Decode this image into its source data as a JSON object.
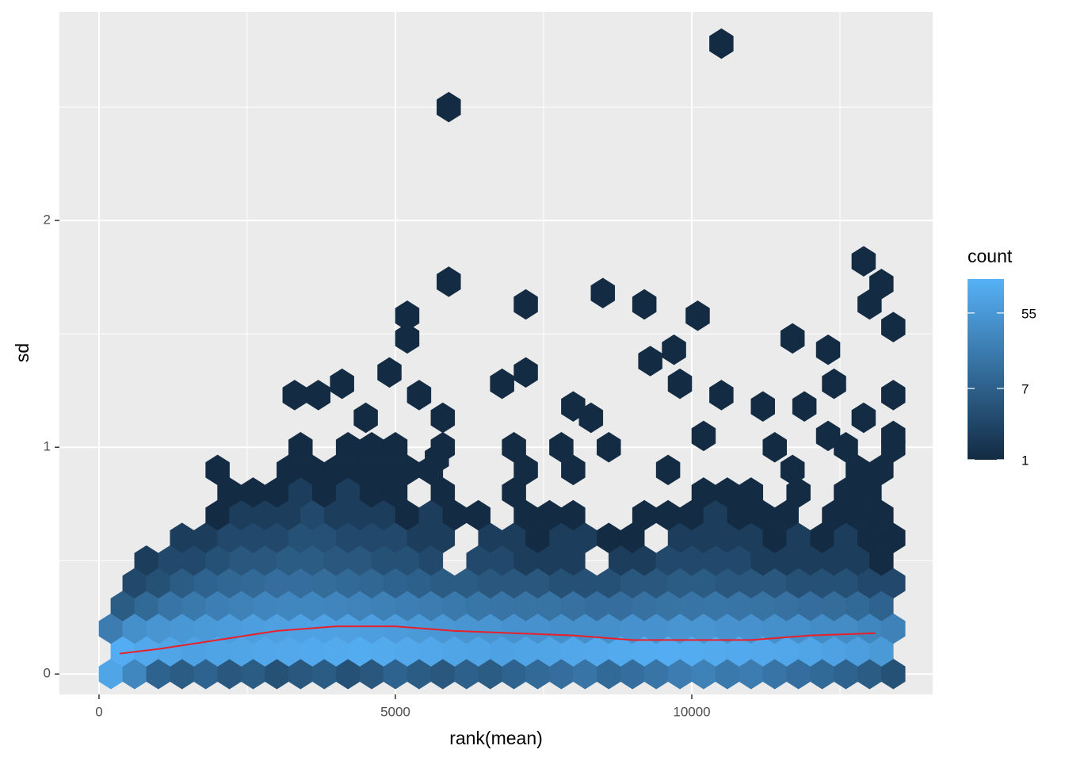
{
  "chart_data": {
    "type": "hexbin",
    "x_label": "rank(mean)",
    "y_label": "sd",
    "xlim": [
      -668,
      14064
    ],
    "ylim": [
      -0.09,
      2.92
    ],
    "xticks": [
      0,
      5000,
      10000
    ],
    "yticks": [
      0,
      1,
      2
    ],
    "x_minor_grid": [
      2500,
      7500,
      12500
    ],
    "y_minor_grid": [
      0.5,
      1.5,
      2.5
    ],
    "grid": true,
    "legend": {
      "title": "count",
      "ticks": [
        1,
        7,
        55
      ],
      "lim": [
        1,
        139
      ],
      "log": true,
      "colors": [
        "#132B43",
        "#56B1F7"
      ]
    },
    "hexes": [
      {
        "y": 0,
        "x": [
          200,
          600,
          1000,
          1400,
          1800,
          2200,
          2600,
          3000,
          3400,
          3800,
          4200,
          4600,
          5000,
          5400,
          5800,
          6200,
          6600,
          7000,
          7400,
          7800,
          8200,
          8600,
          9000,
          9400,
          9800,
          10200,
          10600,
          11000,
          11400,
          11800,
          12200,
          12600,
          13000,
          13400
        ],
        "count": [
          90,
          30,
          8,
          6,
          8,
          5,
          6,
          4,
          5,
          6,
          4,
          5,
          8,
          6,
          5,
          7,
          6,
          8,
          10,
          12,
          15,
          10,
          12,
          15,
          20,
          25,
          18,
          20,
          15,
          12,
          10,
          8,
          6,
          4
        ]
      },
      {
        "y": 0.1,
        "x": [
          400,
          800,
          1200,
          1600,
          2000,
          2400,
          2800,
          3200,
          3600,
          4000,
          4400,
          4800,
          5200,
          5600,
          6000,
          6400,
          6800,
          7200,
          7600,
          8000,
          8400,
          8800,
          9200,
          9600,
          10000,
          10400,
          10800,
          11200,
          11600,
          12000,
          12400,
          12800,
          13200
        ],
        "count": [
          120,
          100,
          90,
          80,
          85,
          90,
          95,
          100,
          105,
          110,
          115,
          110,
          100,
          95,
          90,
          85,
          80,
          85,
          90,
          95,
          100,
          110,
          115,
          120,
          115,
          110,
          105,
          100,
          95,
          90,
          80,
          70,
          60
        ]
      },
      {
        "y": 0.2,
        "x": [
          200,
          600,
          1000,
          1400,
          1800,
          2200,
          2600,
          3000,
          3400,
          3800,
          4200,
          4600,
          5000,
          5400,
          5800,
          6200,
          6600,
          7000,
          7400,
          7800,
          8200,
          8600,
          9000,
          9400,
          9800,
          10200,
          10600,
          11000,
          11400,
          11800,
          12200,
          12600,
          13000,
          13400
        ],
        "count": [
          20,
          40,
          50,
          55,
          60,
          65,
          70,
          75,
          80,
          80,
          75,
          70,
          65,
          60,
          55,
          50,
          50,
          45,
          45,
          40,
          40,
          40,
          45,
          45,
          50,
          50,
          45,
          45,
          40,
          40,
          35,
          35,
          30,
          25
        ]
      },
      {
        "y": 0.3,
        "x": [
          400,
          800,
          1200,
          1600,
          2000,
          2400,
          2800,
          3200,
          3600,
          4000,
          4400,
          4800,
          5200,
          5600,
          6000,
          6400,
          6800,
          7200,
          7600,
          8000,
          8400,
          8800,
          9200,
          9600,
          10000,
          10400,
          10800,
          11200,
          11600,
          12000,
          12400,
          12800,
          13200
        ],
        "count": [
          6,
          10,
          15,
          18,
          22,
          25,
          28,
          30,
          30,
          28,
          26,
          24,
          22,
          20,
          18,
          16,
          15,
          14,
          14,
          13,
          12,
          12,
          13,
          14,
          15,
          16,
          15,
          14,
          13,
          12,
          11,
          10,
          8
        ]
      },
      {
        "y": 0.4,
        "x": [
          200,
          600,
          1000,
          1400,
          1800,
          2200,
          2600,
          3000,
          3400,
          3800,
          4200,
          4600,
          5000,
          5400,
          5800,
          6200,
          6600,
          7000,
          7400,
          7800,
          8200,
          8600,
          9000,
          9400,
          9800,
          10200,
          10600,
          11000,
          11400,
          11800,
          12200,
          12600,
          13000,
          13400
        ],
        "count": [
          null,
          3,
          4,
          6,
          8,
          9,
          10,
          12,
          12,
          11,
          10,
          9,
          8,
          7,
          6,
          6,
          5,
          5,
          5,
          4,
          4,
          4,
          5,
          5,
          6,
          6,
          5,
          5,
          5,
          4,
          4,
          4,
          3,
          3
        ]
      },
      {
        "y": 0.5,
        "x": [
          400,
          800,
          1200,
          1600,
          2000,
          2400,
          2800,
          3200,
          3600,
          4000,
          4400,
          4800,
          5200,
          5600,
          6000,
          6400,
          6800,
          7200,
          7600,
          8000,
          8400,
          8800,
          9200,
          9600,
          10000,
          10400,
          10800,
          11200,
          11600,
          12000,
          12400,
          12800,
          13200
        ],
        "count": [
          null,
          2,
          3,
          3,
          4,
          5,
          5,
          6,
          6,
          5,
          5,
          4,
          4,
          3,
          null,
          3,
          3,
          2,
          2,
          2,
          null,
          2,
          2,
          3,
          3,
          3,
          3,
          2,
          2,
          2,
          2,
          2,
          1
        ]
      },
      {
        "y": 0.6,
        "x": [
          200,
          600,
          1000,
          1400,
          1800,
          2200,
          2600,
          3000,
          3400,
          3800,
          4200,
          4600,
          5000,
          5400,
          5800,
          6200,
          6600,
          7000,
          7400,
          7800,
          8200,
          8600,
          9000,
          9400,
          9800,
          10200,
          10600,
          11000,
          11400,
          11800,
          12200,
          12600,
          13000,
          13400
        ],
        "count": [
          null,
          null,
          null,
          2,
          2,
          3,
          3,
          3,
          4,
          4,
          3,
          3,
          3,
          2,
          2,
          null,
          2,
          2,
          1,
          2,
          2,
          1,
          1,
          null,
          2,
          2,
          2,
          2,
          1,
          2,
          1,
          2,
          1,
          1
        ]
      },
      {
        "y": 0.7,
        "x": [
          400,
          800,
          1200,
          1600,
          2000,
          2400,
          2800,
          3200,
          3600,
          4000,
          4400,
          4800,
          5200,
          5600,
          6000,
          6400,
          6800,
          7200,
          7600,
          8000,
          8400,
          8800,
          9200,
          9600,
          10000,
          10400,
          10800,
          11200,
          11600,
          12000,
          12400,
          12800,
          13200
        ],
        "count": [
          null,
          null,
          null,
          null,
          1,
          2,
          2,
          2,
          3,
          2,
          2,
          2,
          1,
          2,
          1,
          1,
          null,
          1,
          1,
          1,
          null,
          null,
          1,
          1,
          1,
          2,
          1,
          1,
          1,
          null,
          1,
          1,
          1
        ]
      },
      {
        "y": 0.8,
        "x": [
          200,
          600,
          1000,
          1400,
          1800,
          2200,
          2600,
          3000,
          3400,
          3800,
          4200,
          4600,
          5000,
          5400,
          5800,
          6200,
          6600,
          7000,
          7400,
          7800,
          8200,
          8600,
          9000,
          9400,
          9800,
          10200,
          10600,
          11000,
          11400,
          11800,
          12200,
          12600,
          13000,
          13400
        ],
        "count": [
          null,
          null,
          null,
          null,
          null,
          1,
          1,
          1,
          2,
          1,
          2,
          1,
          1,
          null,
          1,
          null,
          null,
          1,
          null,
          null,
          null,
          null,
          null,
          null,
          null,
          1,
          1,
          1,
          null,
          1,
          null,
          1,
          1,
          null
        ]
      },
      {
        "y": 0.9,
        "x": [
          400,
          800,
          1200,
          1600,
          2000,
          2400,
          2800,
          3200,
          3600,
          4000,
          4400,
          4800,
          5200,
          5600,
          6000,
          6400,
          6800,
          7200,
          7600,
          8000,
          8400,
          8800,
          9200,
          9600,
          10000,
          10400,
          10800,
          11200,
          11600,
          12000,
          12400,
          12800,
          13200
        ],
        "count": [
          null,
          null,
          null,
          null,
          1,
          null,
          null,
          1,
          1,
          1,
          1,
          1,
          1,
          1,
          null,
          null,
          null,
          1,
          null,
          1,
          null,
          null,
          null,
          1,
          null,
          null,
          null,
          null,
          null,
          null,
          null,
          1,
          1
        ]
      },
      {
        "y": 1.0,
        "x": [
          200,
          600,
          1000,
          1400,
          1800,
          2200,
          2600,
          3000,
          3400,
          3800,
          4200,
          4600,
          5000,
          5400,
          5800,
          6200,
          6600,
          7000,
          7400,
          7800,
          8200,
          8600,
          9000,
          9400,
          9800,
          10200,
          10600,
          11000,
          11400,
          11800,
          12200,
          12600,
          13000,
          13400
        ],
        "count": [
          null,
          null,
          null,
          null,
          null,
          null,
          null,
          null,
          1,
          null,
          1,
          1,
          1,
          null,
          1,
          null,
          null,
          1,
          null,
          1,
          null,
          1,
          null,
          null,
          null,
          null,
          null,
          null,
          1,
          null,
          null,
          1,
          null,
          1
        ]
      }
    ],
    "sparse_hexes": {
      "x": [
        5900,
        10500,
        5900,
        7200,
        8500,
        9200,
        10100,
        5200,
        5200,
        12900,
        13200,
        13000,
        13400,
        11700,
        12300,
        9700,
        9300,
        4900,
        7200,
        3300,
        3700,
        5400,
        10500,
        13400,
        4100,
        6800,
        9800,
        12400,
        8000,
        11200,
        11900,
        4500,
        5800,
        8300,
        12900,
        10200,
        12300,
        13400,
        5700,
        11700
      ],
      "y": [
        2.5,
        2.78,
        1.73,
        1.63,
        1.68,
        1.63,
        1.58,
        1.58,
        1.48,
        1.82,
        1.72,
        1.63,
        1.53,
        1.48,
        1.43,
        1.43,
        1.38,
        1.33,
        1.33,
        1.23,
        1.23,
        1.23,
        1.23,
        1.23,
        1.28,
        1.28,
        1.28,
        1.28,
        1.18,
        1.18,
        1.18,
        1.13,
        1.13,
        1.13,
        1.13,
        1.05,
        1.05,
        1.05,
        0.95,
        0.9
      ],
      "count": [
        1,
        1,
        1,
        1,
        1,
        1,
        1,
        1,
        1,
        1,
        1,
        1,
        1,
        1,
        1,
        1,
        1,
        1,
        1,
        1,
        1,
        1,
        1,
        1,
        1,
        1,
        1,
        1,
        1,
        1,
        1,
        1,
        1,
        1,
        1,
        1,
        1,
        1,
        1,
        1
      ]
    },
    "smooth": {
      "color": "#e8202a",
      "x": [
        350,
        1000,
        2000,
        3000,
        4000,
        5000,
        6000,
        7000,
        8000,
        9000,
        10000,
        11000,
        12000,
        13100
      ],
      "y": [
        0.09,
        0.11,
        0.15,
        0.19,
        0.21,
        0.21,
        0.19,
        0.18,
        0.17,
        0.15,
        0.15,
        0.15,
        0.17,
        0.18
      ]
    }
  }
}
